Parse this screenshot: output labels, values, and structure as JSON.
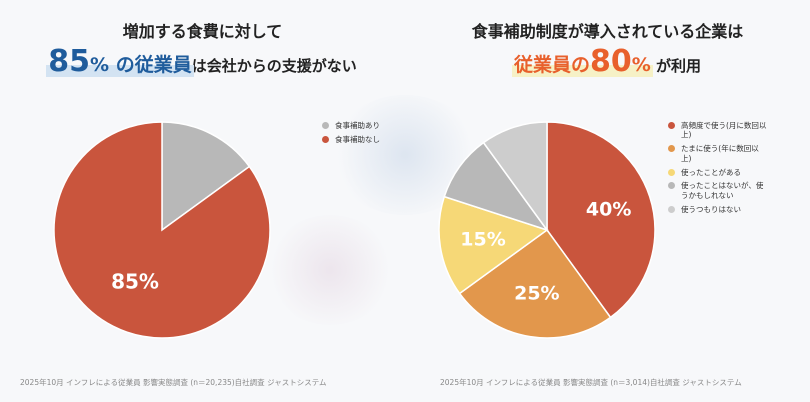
{
  "left": {
    "heading_line1": "増加する食費に対して",
    "heading_line2": {
      "highlight_number": "85",
      "highlight_unit": "%",
      "highlight_suffix": " の従業員",
      "rest": "は会社からの支援がない"
    },
    "footer": "2025年10月 インフレによる従業員 影響実態調査 (n＝20,235)自社調査  ジャストシステム"
  },
  "right": {
    "heading_line1": "食事補助制度が導入されている企業は",
    "heading_line2": {
      "highlight_prefix": "従業員の",
      "highlight_number": "80",
      "highlight_unit": "%",
      "rest": " が利用"
    },
    "footer": "2025年10月 インフレによる従業員 影響実態調査 (n＝3,014)自社調査  ジャストシステム"
  },
  "chart_data": [
    {
      "type": "pie",
      "start_angle_deg": 0,
      "direction": "clockwise",
      "legend_position": "top-right",
      "series": [
        {
          "name": "食事補助あり",
          "value": 15,
          "color": "#b8b8b8",
          "label": ""
        },
        {
          "name": "食事補助なし",
          "value": 85,
          "color": "#c9553d",
          "label": "85%"
        }
      ]
    },
    {
      "type": "pie",
      "start_angle_deg": 0,
      "direction": "clockwise",
      "legend_position": "top-right",
      "series": [
        {
          "name": "高頻度で使う(月に数回以上)",
          "value": 40,
          "color": "#c9553d",
          "label": "40%"
        },
        {
          "name": "たまに使う(年に数回以上)",
          "value": 25,
          "color": "#e2974c",
          "label": "25%"
        },
        {
          "name": "使ったことがある",
          "value": 15,
          "color": "#f6d877",
          "label": "15%"
        },
        {
          "name": "使ったことはないが、使うかもしれない",
          "value": 10,
          "color": "#b8b8b8",
          "label": ""
        },
        {
          "name": "使うつもりはない",
          "value": 10,
          "color": "#cdcdcd",
          "label": ""
        }
      ]
    }
  ]
}
